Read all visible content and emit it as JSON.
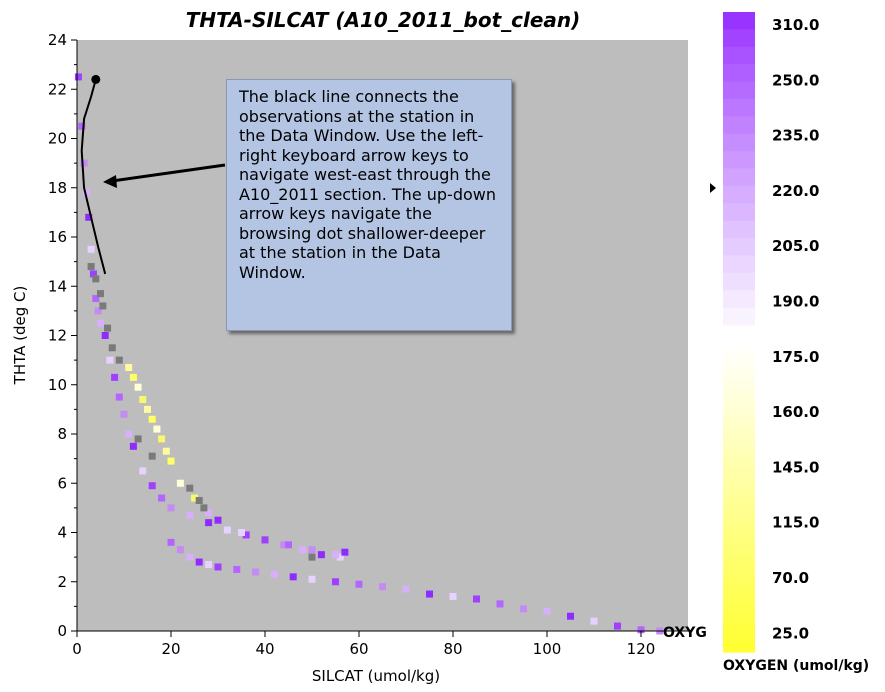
{
  "chart_data": {
    "type": "scatter",
    "title": "THTA-SILCAT (A10_2011_bot_clean)",
    "xlabel": "SILCAT (umol/kg)",
    "ylabel": "THTA (deg C)",
    "xlim": [
      0,
      130
    ],
    "ylim": [
      0,
      24
    ],
    "xticks": [
      0,
      20,
      40,
      60,
      80,
      100,
      120
    ],
    "yticks": [
      0,
      2,
      4,
      6,
      8,
      10,
      12,
      14,
      16,
      18,
      20,
      22,
      24
    ],
    "grid": false,
    "background": "#bdbdbd",
    "series": [
      {
        "name": "",
        "x": [
          0.3,
          1.0,
          1.5,
          2.0,
          2.5,
          3.0,
          3.5,
          4.0,
          4.5,
          5.0,
          6.0,
          7.0,
          8.0,
          9.0,
          10.0,
          11.0,
          12.0,
          14.0,
          16.0,
          18.0,
          20.0,
          24.0,
          28.0,
          32.0,
          36.0,
          40.0,
          44.0,
          48.0,
          52.0,
          56.0
        ],
        "y": [
          22.5,
          20.5,
          19.0,
          17.8,
          16.8,
          15.5,
          14.5,
          13.5,
          13.0,
          12.5,
          12.0,
          11.0,
          10.3,
          9.5,
          8.8,
          8.0,
          7.5,
          6.5,
          5.9,
          5.4,
          5.0,
          4.7,
          4.4,
          4.1,
          3.9,
          3.7,
          3.5,
          3.3,
          3.1,
          3.0
        ]
      },
      {
        "name": "",
        "x": [
          20,
          22,
          24,
          26,
          28,
          30,
          34,
          38,
          42,
          46,
          50,
          55,
          60,
          65,
          70,
          75,
          80,
          85,
          90,
          95,
          100,
          105,
          110,
          115,
          120,
          124
        ],
        "y": [
          3.6,
          3.3,
          3.0,
          2.8,
          2.7,
          2.6,
          2.5,
          2.4,
          2.3,
          2.2,
          2.1,
          2.0,
          1.9,
          1.8,
          1.7,
          1.5,
          1.4,
          1.3,
          1.1,
          0.9,
          0.8,
          0.6,
          0.4,
          0.2,
          0.05,
          0.0
        ]
      },
      {
        "name": "",
        "x": [
          11,
          12,
          13,
          14,
          15,
          16,
          17,
          18,
          19,
          20,
          22,
          25,
          28,
          30,
          35,
          40,
          45,
          50,
          55,
          57
        ],
        "y": [
          10.7,
          10.3,
          9.9,
          9.4,
          9.0,
          8.6,
          8.2,
          7.8,
          7.3,
          6.9,
          6.0,
          5.4,
          4.8,
          4.5,
          4.0,
          3.7,
          3.5,
          3.3,
          3.1,
          3.2
        ]
      },
      {
        "name": "",
        "x": [
          3,
          4,
          5,
          5.5,
          6.5,
          7.5,
          9,
          13,
          16,
          24,
          26,
          27,
          50
        ],
        "y": [
          14.8,
          14.3,
          13.7,
          13.2,
          12.3,
          11.5,
          11.0,
          7.8,
          7.1,
          5.8,
          5.3,
          5.0,
          3.0
        ]
      }
    ],
    "station_line": {
      "x": [
        4.0,
        3.0,
        1.5,
        1.0,
        1.5,
        3.0,
        4.5,
        6.0
      ],
      "y": [
        22.4,
        21.7,
        20.8,
        19.5,
        18.0,
        16.8,
        15.6,
        14.5
      ]
    },
    "colorbar": {
      "variable": "OXYGEN (umol/kg)",
      "labels": [
        "310.0",
        "250.0",
        "235.0",
        "220.0",
        "205.0",
        "190.0",
        "175.0",
        "160.0",
        "145.0",
        "115.0",
        "70.0",
        "25.0"
      ],
      "indicator_value": "220.0",
      "low_color": "#ffff33",
      "mid_color": "#ffffff",
      "high_color": "#9933ff"
    },
    "annotation": "The black line connects the observations at the station in the Data Window. Use the left-right keyboard arrow keys to navigate west-east through the A10_2011 section. The up-down arrow keys navigate the browsing dot shallower-deeper at the station in the Data Window.",
    "axis_marker_label": "OXYG"
  }
}
